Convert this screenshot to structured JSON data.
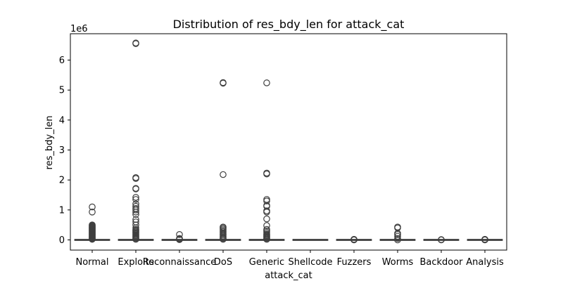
{
  "chart_data": {
    "type": "boxplot",
    "title": "Distribution of res_bdy_len for attack_cat",
    "xlabel": "attack_cat",
    "ylabel": "res_bdy_len",
    "y_offset_label": "1e6",
    "ylim": [
      -0.34,
      6.88
    ],
    "yticks": [
      0,
      1,
      2,
      3,
      4,
      5,
      6
    ],
    "grid": false,
    "categories": [
      "Normal",
      "Exploits",
      "Reconnaissance",
      "DoS",
      "Generic",
      "Shellcode",
      "Fuzzers",
      "Worms",
      "Backdoor",
      "Analysis"
    ],
    "boxes": [
      {
        "category": "Normal",
        "q1": 0,
        "median": 0,
        "q3": 0,
        "whisker_low": 0,
        "whisker_high": 0,
        "outliers": [
          0.02,
          0.04,
          0.06,
          0.08,
          0.1,
          0.12,
          0.14,
          0.16,
          0.18,
          0.2,
          0.22,
          0.24,
          0.26,
          0.28,
          0.3,
          0.32,
          0.34,
          0.36,
          0.38,
          0.4,
          0.42,
          0.44,
          0.46,
          0.48,
          0.5,
          0.93,
          1.1
        ]
      },
      {
        "category": "Exploits",
        "q1": 0,
        "median": 0,
        "q3": 0,
        "whisker_low": 0,
        "whisker_high": 0,
        "outliers": [
          0.02,
          0.05,
          0.08,
          0.11,
          0.14,
          0.17,
          0.2,
          0.23,
          0.26,
          0.29,
          0.32,
          0.35,
          0.4,
          0.5,
          0.6,
          0.68,
          0.85,
          0.93,
          1.0,
          1.05,
          1.12,
          1.2,
          1.35,
          1.42,
          1.7,
          1.72,
          2.05,
          2.08,
          6.55,
          6.57
        ]
      },
      {
        "category": "Reconnaissance",
        "q1": 0,
        "median": 0,
        "q3": 0,
        "whisker_low": 0,
        "whisker_high": 0,
        "outliers": [
          0.01,
          0.03,
          0.05,
          0.18
        ]
      },
      {
        "category": "DoS",
        "q1": 0,
        "median": 0,
        "q3": 0,
        "whisker_low": 0,
        "whisker_high": 0,
        "outliers": [
          0.02,
          0.05,
          0.08,
          0.12,
          0.16,
          0.2,
          0.24,
          0.28,
          0.32,
          0.36,
          0.4,
          0.43,
          2.18,
          5.23,
          5.25
        ]
      },
      {
        "category": "Generic",
        "q1": 0,
        "median": 0,
        "q3": 0,
        "whisker_low": 0,
        "whisker_high": 0,
        "outliers": [
          0.02,
          0.05,
          0.08,
          0.11,
          0.14,
          0.17,
          0.2,
          0.25,
          0.3,
          0.35,
          0.48,
          0.7,
          0.93,
          0.97,
          1.12,
          1.15,
          1.3,
          1.35,
          2.2,
          2.23,
          5.24
        ]
      },
      {
        "category": "Shellcode",
        "q1": 0,
        "median": 0,
        "q3": 0,
        "whisker_low": 0,
        "whisker_high": 0,
        "outliers": []
      },
      {
        "category": "Fuzzers",
        "q1": 0,
        "median": 0,
        "q3": 0,
        "whisker_low": 0,
        "whisker_high": 0,
        "outliers": [
          0.0,
          0.01,
          0.02
        ]
      },
      {
        "category": "Worms",
        "q1": 0,
        "median": 0,
        "q3": 0,
        "whisker_low": 0,
        "whisker_high": 0,
        "outliers": [
          0.0,
          0.05,
          0.12,
          0.18,
          0.22,
          0.4,
          0.43
        ]
      },
      {
        "category": "Backdoor",
        "q1": 0,
        "median": 0,
        "q3": 0,
        "whisker_low": 0,
        "whisker_high": 0,
        "outliers": [
          0.0,
          0.01
        ]
      },
      {
        "category": "Analysis",
        "q1": 0,
        "median": 0,
        "q3": 0,
        "whisker_low": 0,
        "whisker_high": 0,
        "outliers": [
          0.0,
          0.01,
          0.02
        ]
      }
    ],
    "colors": {
      "box_fill": "#d9d9d9",
      "box_edge": "#3f3f3f",
      "outlier_edge": "#3f3f3f"
    }
  }
}
